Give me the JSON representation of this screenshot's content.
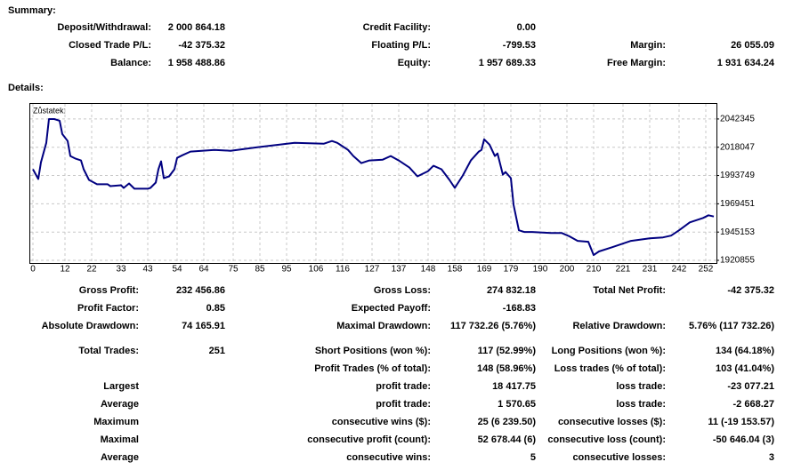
{
  "summary": {
    "title": "Summary:",
    "rows": [
      [
        {
          "label": "Deposit/Withdrawal:",
          "value": "2 000 864.18"
        },
        {
          "label": "Credit Facility:",
          "value": "0.00"
        },
        null
      ],
      [
        {
          "label": "Closed Trade P/L:",
          "value": "-42 375.32"
        },
        {
          "label": "Floating P/L:",
          "value": "-799.53"
        },
        {
          "label": "Margin:",
          "value": "26 055.09"
        }
      ],
      [
        {
          "label": "Balance:",
          "value": "1 958 488.86"
        },
        {
          "label": "Equity:",
          "value": "1 957 689.33"
        },
        {
          "label": "Free Margin:",
          "value": "1 931 634.24"
        }
      ]
    ]
  },
  "details_title": "Details:",
  "chart_data": {
    "type": "line",
    "label": "Zůstatek:",
    "color": "#000080",
    "grid": true,
    "x": [
      0,
      2,
      3,
      5,
      6,
      8,
      10,
      11,
      13,
      14,
      16,
      18,
      19,
      21,
      24,
      28,
      29,
      33,
      34,
      36,
      38,
      43,
      44,
      46,
      47,
      48,
      49,
      51,
      53,
      54,
      56,
      59,
      68,
      74,
      84,
      98,
      109,
      112,
      114,
      118,
      120,
      123,
      126,
      131,
      134,
      137,
      141,
      144,
      148,
      150,
      153,
      156,
      158,
      161,
      164,
      167,
      168,
      169,
      171,
      173,
      174,
      176,
      177,
      179,
      180,
      182,
      184,
      187,
      194,
      198,
      201,
      204,
      208,
      210,
      212,
      217,
      224,
      231,
      236,
      239,
      242,
      246,
      251,
      253,
      255
    ],
    "values": [
      1999100,
      1990700,
      2005100,
      2021800,
      2042300,
      2042300,
      2040800,
      2029400,
      2023400,
      2010500,
      2008200,
      2006700,
      1999100,
      1990000,
      1986200,
      1986200,
      1984600,
      1985400,
      1983100,
      1986900,
      1982400,
      1982400,
      1983100,
      1987700,
      1999100,
      2005900,
      1991500,
      1993000,
      1999100,
      2008900,
      2011200,
      2014300,
      2015800,
      2015000,
      2018000,
      2021800,
      2021100,
      2023400,
      2021800,
      2015800,
      2010500,
      2004400,
      2006700,
      2007400,
      2010500,
      2006700,
      2000600,
      1993000,
      1997500,
      2002100,
      1999100,
      1990000,
      1983100,
      1993800,
      2006700,
      2014300,
      2015800,
      2024900,
      2020300,
      2010500,
      2012700,
      1994500,
      1996800,
      1991500,
      1968700,
      1946700,
      1945200,
      1945200,
      1944400,
      1944400,
      1941400,
      1937600,
      1936800,
      1925400,
      1928500,
      1932200,
      1937600,
      1939800,
      1940600,
      1942100,
      1946700,
      1953500,
      1957300,
      1959600,
      1958500
    ],
    "xlim": [
      -1,
      256
    ],
    "ylim": [
      1918577,
      2055253
    ],
    "xticks": [
      0,
      12,
      22,
      33,
      43,
      54,
      64,
      75,
      85,
      95,
      106,
      116,
      127,
      137,
      148,
      158,
      169,
      179,
      190,
      200,
      210,
      221,
      231,
      242,
      252
    ],
    "yticks": [
      2042345,
      2018047,
      1993749,
      1969451,
      1945153,
      1920855
    ]
  },
  "details": {
    "rows": [
      [
        {
          "label": "Gross Profit:",
          "value": "232 456.86"
        },
        {
          "label": "Gross Loss:",
          "value": "274 832.18"
        },
        {
          "label": "Total Net Profit:",
          "value": "-42 375.32"
        }
      ],
      [
        {
          "label": "Profit Factor:",
          "value": "0.85"
        },
        {
          "label": "Expected Payoff:",
          "value": "-168.83"
        },
        null
      ],
      [
        {
          "label": "Absolute Drawdown:",
          "value": "74 165.91"
        },
        {
          "label": "Maximal Drawdown:",
          "value": "117 732.26 (5.76%)"
        },
        {
          "label": "Relative Drawdown:",
          "value": "5.76% (117 732.26)"
        }
      ],
      [
        {
          "label": "Total Trades:",
          "value": "251"
        },
        {
          "label": "Short Positions (won %):",
          "value": "117 (52.99%)"
        },
        {
          "label": "Long Positions (won %):",
          "value": "134 (64.18%)"
        }
      ],
      [
        null,
        {
          "label": "Profit Trades (% of total):",
          "value": "148 (58.96%)"
        },
        {
          "label": "Loss trades (% of total):",
          "value": "103 (41.04%)"
        }
      ],
      [
        {
          "label": "Largest"
        },
        {
          "label": "profit trade:",
          "value": "18 417.75"
        },
        {
          "label": "loss trade:",
          "value": "-23 077.21"
        }
      ],
      [
        {
          "label": "Average"
        },
        {
          "label": "profit trade:",
          "value": "1 570.65"
        },
        {
          "label": "loss trade:",
          "value": "-2 668.27"
        }
      ],
      [
        {
          "label": "Maximum"
        },
        {
          "label": "consecutive wins ($):",
          "value": "25 (6 239.50)"
        },
        {
          "label": "consecutive losses ($):",
          "value": "11 (-19 153.57)"
        }
      ],
      [
        {
          "label": "Maximal"
        },
        {
          "label": "consecutive profit (count):",
          "value": "52 678.44 (6)"
        },
        {
          "label": "consecutive loss (count):",
          "value": "-50 646.04 (3)"
        }
      ],
      [
        {
          "label": "Average"
        },
        {
          "label": "consecutive wins:",
          "value": "5"
        },
        {
          "label": "consecutive losses:",
          "value": "3"
        }
      ]
    ]
  }
}
